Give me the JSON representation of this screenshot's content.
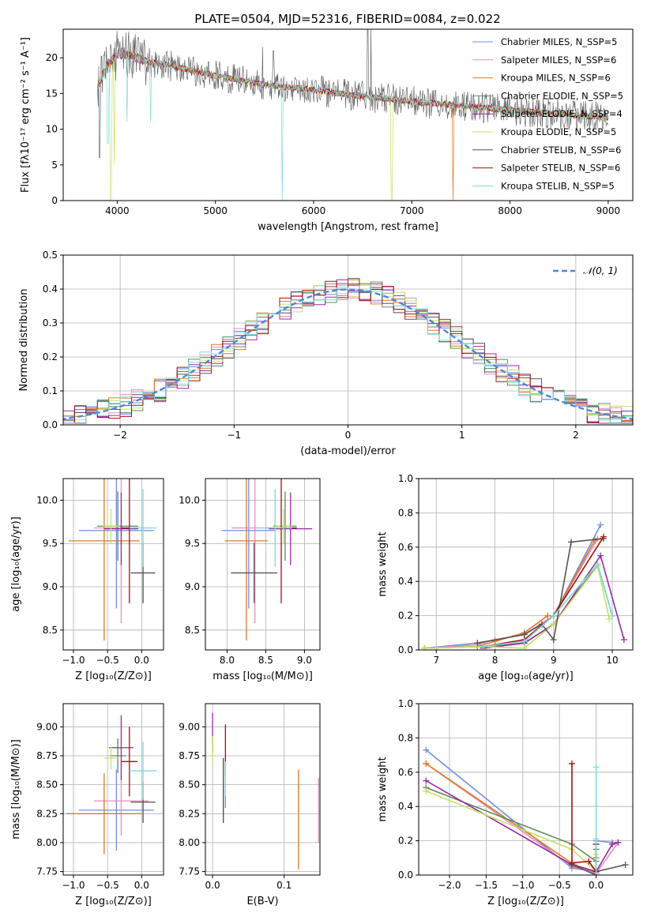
{
  "title": "PLATE=0504, MJD=52316, FIBERID=0084, z=0.022",
  "colors": [
    "#6f8fdf",
    "#e48fc0",
    "#e07820",
    "#5d8a5d",
    "#9a2aa6",
    "#c7e060",
    "#555555",
    "#a21010",
    "#7fdbdb"
  ],
  "chart_data": [
    {
      "type": "line",
      "name": "spectrum",
      "xlabel": "wavelength [Angstrom, rest frame]",
      "ylabel": "Flux [fλ10⁻¹⁷ erg cm⁻² s⁻¹ A⁻¹]",
      "xlim": [
        3450,
        9250
      ],
      "ylim": [
        0,
        24
      ],
      "xticks": [
        4000,
        5000,
        6000,
        7000,
        8000,
        9000
      ],
      "yticks": [
        0,
        5,
        10,
        15,
        20
      ],
      "grid": false,
      "legend_position": "top-right",
      "legend": [
        "Chabrier MILES, N_SSP=5",
        "Salpeter MILES, N_SSP=6",
        "Kroupa MILES, N_SSP=6",
        "Chabrier ELODIE, N_SSP=5",
        "Salpeter ELODIE, N_SSP=4",
        "Kroupa ELODIE, N_SSP=5",
        "Chabrier STELIB, N_SSP=6",
        "Salpeter STELIB, N_SSP=6",
        "Kroupa STELIB, N_SSP=5"
      ],
      "continuum": {
        "x": [
          3800,
          3900,
          4000,
          4100,
          4300,
          4500,
          5000,
          5500,
          6000,
          6500,
          7000,
          7500,
          8000,
          8500,
          9000
        ],
        "y": [
          16,
          19,
          20.5,
          20.5,
          19.5,
          19,
          17.5,
          16.2,
          15.5,
          14.6,
          13.9,
          13.3,
          12.7,
          12.1,
          11.6
        ]
      },
      "deep_dips": [
        {
          "x": 3935,
          "y": 0,
          "series": 5
        },
        {
          "x": 3968,
          "y": 5,
          "series": 5
        },
        {
          "x": 3820,
          "y": 6,
          "series": 6
        },
        {
          "x": 3905,
          "y": 8,
          "series": 8
        },
        {
          "x": 4100,
          "y": 11,
          "series": 8
        },
        {
          "x": 4340,
          "y": 11,
          "series": 8
        },
        {
          "x": 5680,
          "y": 0,
          "series": 8
        },
        {
          "x": 6795,
          "y": 0,
          "series": 5
        },
        {
          "x": 7420,
          "y": 0,
          "series": 2
        }
      ],
      "peaks": [
        {
          "x": 5480,
          "y": 21.5,
          "series": 6
        },
        {
          "x": 5590,
          "y": 21,
          "series": 6
        },
        {
          "x": 6552,
          "y": 24,
          "series": 6
        },
        {
          "x": 6584,
          "y": 24,
          "series": 6
        }
      ]
    },
    {
      "type": "histogram",
      "name": "residuals",
      "xlabel": "(data-model)/error",
      "ylabel": "Normed distribution",
      "xlim": [
        -2.5,
        2.5
      ],
      "ylim": [
        0,
        0.5
      ],
      "xticks": [
        -2,
        -1,
        0,
        1,
        2
      ],
      "yticks": [
        0,
        0.1,
        0.2,
        0.3,
        0.4,
        0.5
      ],
      "grid": true,
      "bin_width": 0.1,
      "legend_position": "top-right",
      "legend": [
        "𝒩(0, 1)"
      ],
      "normal_curve": {
        "mean": 0,
        "sigma": 1
      }
    },
    {
      "type": "scatter",
      "name": "age-vs-metallicity",
      "xlabel": "Z [log₁₀(Z/Z⊙)]",
      "ylabel": "age  [log₁₀(age/yr)]",
      "xlim": [
        -1.15,
        0.32
      ],
      "ylim": [
        8.27,
        10.25
      ],
      "xticks": [
        -1.0,
        -0.5,
        0.0
      ],
      "yticks": [
        8.5,
        9.0,
        9.5,
        10.0
      ],
      "grid": true,
      "points": [
        {
          "series": 0,
          "x": -0.37,
          "y": 9.65,
          "xerr": 0.55,
          "yerr": 0.9
        },
        {
          "series": 1,
          "x": -0.3,
          "y": 9.68,
          "xerr": 0.4,
          "yerr": 1.1
        },
        {
          "series": 2,
          "x": -0.55,
          "y": 9.53,
          "xerr": 0.52,
          "yerr": 1.15
        },
        {
          "series": 3,
          "x": -0.35,
          "y": 9.7,
          "xerr": 0.3,
          "yerr": 0.4
        },
        {
          "series": 4,
          "x": -0.3,
          "y": 9.67,
          "xerr": 0.25,
          "yerr": 0.42
        },
        {
          "series": 5,
          "x": -0.45,
          "y": 9.7,
          "xerr": 0.12,
          "yerr": 0.2
        },
        {
          "series": 6,
          "x": 0.02,
          "y": 9.16,
          "xerr": 0.18,
          "yerr": 0.35
        },
        {
          "series": 7,
          "x": -0.18,
          "y": 9.68,
          "xerr": 0.12,
          "yerr": 0.87
        },
        {
          "series": 8,
          "x": 0.02,
          "y": 9.68,
          "xerr": 0.2,
          "yerr": 0.45
        }
      ]
    },
    {
      "type": "scatter",
      "name": "age-vs-mass",
      "xlabel": "mass [log₁₀(M/M⊙)]",
      "ylabel": "",
      "xlim": [
        7.72,
        9.2
      ],
      "ylim": [
        8.27,
        10.25
      ],
      "xticks": [
        8.0,
        8.5,
        9.0
      ],
      "yticks": [
        8.5,
        9.0,
        9.5,
        10.0
      ],
      "grid": true,
      "points": [
        {
          "series": 0,
          "x": 8.28,
          "y": 9.65,
          "xerr": 0.35,
          "yerr": 0.9
        },
        {
          "series": 1,
          "x": 8.36,
          "y": 9.68,
          "xerr": 0.3,
          "yerr": 1.1
        },
        {
          "series": 2,
          "x": 8.25,
          "y": 9.53,
          "xerr": 0.28,
          "yerr": 1.15
        },
        {
          "series": 3,
          "x": 8.75,
          "y": 9.7,
          "xerr": 0.15,
          "yerr": 0.4
        },
        {
          "series": 4,
          "x": 8.82,
          "y": 9.67,
          "xerr": 0.28,
          "yerr": 0.42
        },
        {
          "series": 5,
          "x": 8.73,
          "y": 9.7,
          "xerr": 0.1,
          "yerr": 0.2
        },
        {
          "series": 6,
          "x": 8.35,
          "y": 9.16,
          "xerr": 0.3,
          "yerr": 0.35
        },
        {
          "series": 7,
          "x": 8.7,
          "y": 9.68,
          "xerr": 0.2,
          "yerr": 0.87
        },
        {
          "series": 8,
          "x": 8.62,
          "y": 9.68,
          "xerr": 0.22,
          "yerr": 0.45
        }
      ]
    },
    {
      "type": "line",
      "name": "mass-weight-vs-age",
      "xlabel": "age  [log₁₀(age/yr)]",
      "ylabel": "mass weight",
      "xlim": [
        6.7,
        10.35
      ],
      "ylim": [
        0,
        1
      ],
      "xticks": [
        7,
        8,
        9,
        10
      ],
      "yticks": [
        0,
        0.2,
        0.4,
        0.6,
        0.8,
        1.0
      ],
      "grid": true,
      "series": [
        {
          "series": 0,
          "x": [
            6.8,
            7.7,
            8.5,
            9.0,
            9.8
          ],
          "y": [
            0.01,
            0.04,
            0.09,
            0.2,
            0.73
          ]
        },
        {
          "series": 1,
          "x": [
            6.8,
            7.7,
            8.0,
            8.5,
            9.0,
            9.75
          ],
          "y": [
            0.01,
            0.03,
            0.06,
            0.09,
            0.2,
            0.65
          ]
        },
        {
          "series": 2,
          "x": [
            6.8,
            7.7,
            8.0,
            8.5,
            8.9,
            9.0,
            9.7
          ],
          "y": [
            0.01,
            0.02,
            0.05,
            0.1,
            0.2,
            0.2,
            0.64
          ]
        },
        {
          "series": 3,
          "x": [
            6.8,
            7.8,
            8.5,
            9.0,
            9.75,
            10.0
          ],
          "y": [
            0.01,
            0.02,
            0.04,
            0.15,
            0.5,
            0.2
          ]
        },
        {
          "series": 4,
          "x": [
            7.8,
            8.5,
            9.0,
            9.8,
            10.2
          ],
          "y": [
            0.01,
            0.04,
            0.15,
            0.55,
            0.06
          ]
        },
        {
          "series": 5,
          "x": [
            6.8,
            7.8,
            8.5,
            9.0,
            9.75,
            9.95
          ],
          "y": [
            0.01,
            0.02,
            0.01,
            0.15,
            0.49,
            0.18
          ]
        },
        {
          "series": 6,
          "x": [
            7.7,
            8.5,
            8.8,
            9.0,
            9.3,
            9.85
          ],
          "y": [
            0.04,
            0.09,
            0.15,
            0.06,
            0.63,
            0.65
          ]
        },
        {
          "series": 7,
          "x": [
            7.8,
            8.5,
            9.0,
            9.85
          ],
          "y": [
            0.02,
            0.06,
            0.2,
            0.66
          ]
        },
        {
          "series": 8,
          "x": [
            7.8,
            8.5,
            9.0,
            9.75,
            10.0
          ],
          "y": [
            0.02,
            0.05,
            0.2,
            0.5,
            0.2
          ]
        }
      ]
    },
    {
      "type": "scatter",
      "name": "mass-vs-metallicity",
      "xlabel": "Z [log₁₀(Z/Z⊙)]",
      "ylabel": "mass [log₁₀(M/M⊙)]",
      "xlim": [
        -1.15,
        0.32
      ],
      "ylim": [
        7.72,
        9.2
      ],
      "xticks": [
        -1.0,
        -0.5,
        0.0
      ],
      "yticks": [
        7.75,
        8.0,
        8.25,
        8.5,
        8.75,
        9.0
      ],
      "grid": true,
      "points": [
        {
          "series": 0,
          "x": -0.37,
          "y": 8.28,
          "xerr": 0.55,
          "yerr": 0.35
        },
        {
          "series": 1,
          "x": -0.3,
          "y": 8.36,
          "xerr": 0.4,
          "yerr": 0.3
        },
        {
          "series": 2,
          "x": -0.55,
          "y": 8.25,
          "xerr": 0.55,
          "yerr": 0.35
        },
        {
          "series": 3,
          "x": -0.35,
          "y": 8.75,
          "xerr": 0.12,
          "yerr": 0.15
        },
        {
          "series": 4,
          "x": -0.3,
          "y": 8.82,
          "xerr": 0.18,
          "yerr": 0.28
        },
        {
          "series": 5,
          "x": -0.45,
          "y": 8.73,
          "xerr": 0.1,
          "yerr": 0.1
        },
        {
          "series": 6,
          "x": 0.02,
          "y": 8.35,
          "xerr": 0.18,
          "yerr": 0.18
        },
        {
          "series": 7,
          "x": -0.18,
          "y": 8.7,
          "xerr": 0.12,
          "yerr": 0.3
        },
        {
          "series": 8,
          "x": 0.02,
          "y": 8.62,
          "xerr": 0.2,
          "yerr": 0.25
        }
      ]
    },
    {
      "type": "scatter",
      "name": "mass-vs-extinction",
      "xlabel": "E(B-V)",
      "ylabel": "",
      "xlim": [
        -0.01,
        0.15
      ],
      "ylim": [
        7.72,
        9.2
      ],
      "xticks": [
        0.0,
        0.1
      ],
      "yticks": [
        7.75,
        8.0,
        8.25,
        8.5,
        8.75,
        9.0
      ],
      "grid": true,
      "points": [
        {
          "series": 0,
          "x": 0.018,
          "y": 8.5,
          "yerr": 0.2
        },
        {
          "series": 1,
          "x": 0.148,
          "y": 8.28,
          "yerr": 0.28
        },
        {
          "series": 2,
          "x": 0.12,
          "y": 8.2,
          "yerr": 0.43
        },
        {
          "series": 3,
          "x": 0.015,
          "y": 8.45,
          "yerr": 0.28
        },
        {
          "series": 4,
          "x": 0.0,
          "y": 8.95,
          "yerr": 0.17
        },
        {
          "series": 5,
          "x": 0.0,
          "y": 8.8,
          "yerr": 0.12
        },
        {
          "series": 6,
          "x": 0.015,
          "y": 8.45,
          "yerr": 0.28
        },
        {
          "series": 7,
          "x": 0.018,
          "y": 8.8,
          "yerr": 0.22
        },
        {
          "series": 8,
          "x": 0.018,
          "y": 8.55,
          "yerr": 0.15
        }
      ]
    },
    {
      "type": "line",
      "name": "mass-weight-vs-metallicity",
      "xlabel": "Z [log₁₀(Z/Z⊙)]",
      "ylabel": "mass weight",
      "xlim": [
        -2.42,
        0.5
      ],
      "ylim": [
        0,
        1
      ],
      "xticks": [
        -2.0,
        -1.5,
        -1.0,
        -0.5,
        0.0
      ],
      "yticks": [
        0,
        0.2,
        0.4,
        0.6,
        0.8,
        1.0
      ],
      "grid": true,
      "series": [
        {
          "series": 0,
          "x": [
            -2.32,
            -0.33,
            0.0,
            0.0,
            0.22
          ],
          "y": [
            0.73,
            0.04,
            0.02,
            0.2,
            0.19
          ]
        },
        {
          "series": 1,
          "x": [
            -2.32,
            -0.33,
            0.0,
            0.3
          ],
          "y": [
            0.65,
            0.05,
            0.01,
            0.19
          ]
        },
        {
          "series": 2,
          "x": [
            -2.32,
            -0.3,
            0.0,
            0.0
          ],
          "y": [
            0.65,
            0.06,
            0.02,
            0.1
          ]
        },
        {
          "series": 3,
          "x": [
            -2.32,
            -0.33,
            0.0,
            0.0
          ],
          "y": [
            0.51,
            0.18,
            0.08,
            0.15
          ]
        },
        {
          "series": 4,
          "x": [
            -2.32,
            -0.33,
            0.0,
            0.22,
            0.3
          ],
          "y": [
            0.55,
            0.06,
            0.02,
            0.18,
            0.19
          ]
        },
        {
          "series": 5,
          "x": [
            -2.32,
            -0.33,
            0.0,
            0.0
          ],
          "y": [
            0.49,
            0.15,
            0.02,
            0.12
          ]
        },
        {
          "series": 6,
          "x": [
            -0.33,
            0.0,
            0.0,
            0.4
          ],
          "y": [
            0.06,
            0.0,
            0.02,
            0.06
          ]
        },
        {
          "series": 7,
          "x": [
            -0.33,
            -0.33,
            -0.1,
            0.0,
            0.0
          ],
          "y": [
            0.65,
            0.07,
            0.08,
            0.02,
            0.18
          ]
        },
        {
          "series": 8,
          "x": [
            0.0,
            0.0,
            0.0
          ],
          "y": [
            0.0,
            0.63,
            0.21
          ]
        }
      ]
    }
  ]
}
